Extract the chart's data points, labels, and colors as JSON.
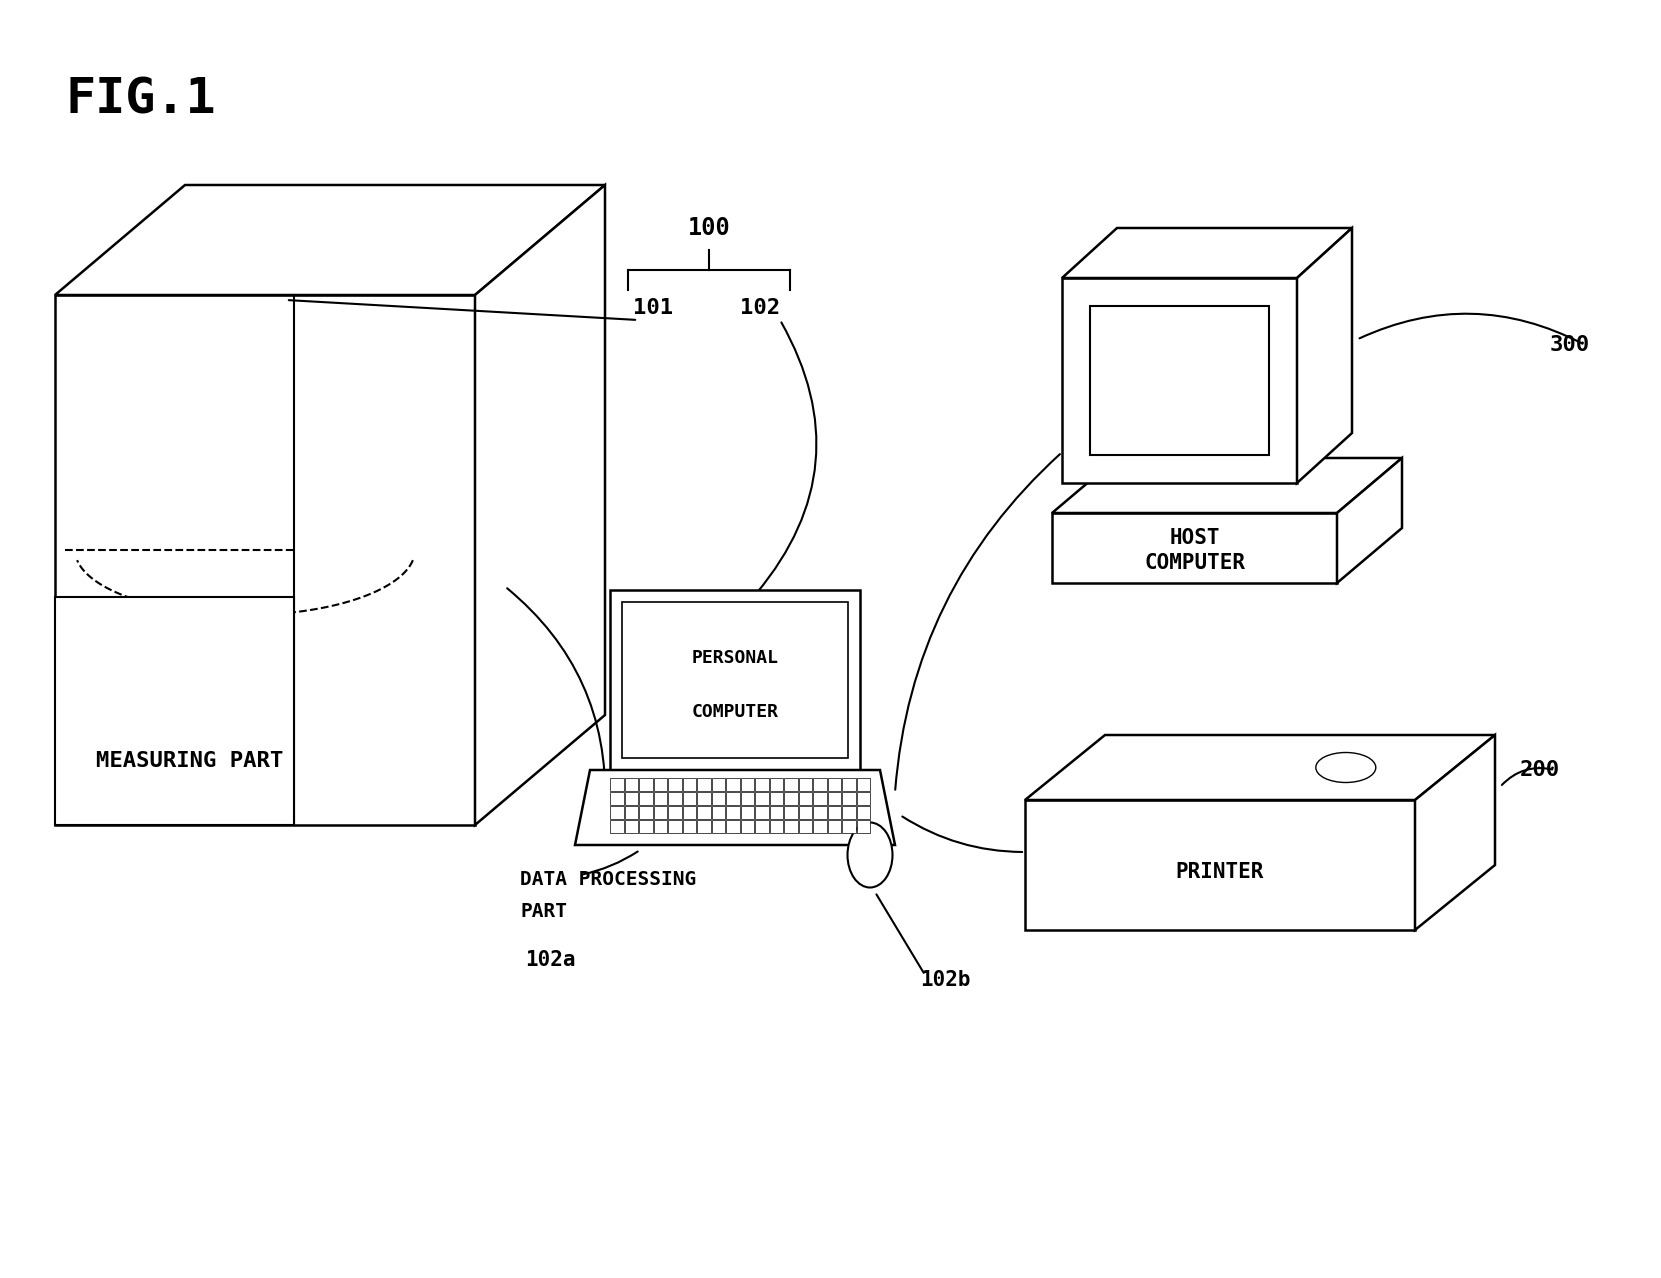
{
  "bg_color": "#ffffff",
  "fig_width": 16.61,
  "fig_height": 12.78,
  "labels": {
    "fig_title": "FIG.1",
    "measuring_part": "MEASURING PART",
    "personal_computer_1": "PERSONAL",
    "personal_computer_2": "COMPUTER",
    "data_processing_1": "DATA PROCESSING",
    "data_processing_2": "PART",
    "host_computer_1": "HOST",
    "host_computer_2": "COMPUTER",
    "printer": "PRINTER",
    "ref_100": "100",
    "ref_101": "101",
    "ref_102": "102",
    "ref_102a": "102a",
    "ref_102b": "102b",
    "ref_200": "200",
    "ref_300": "300"
  },
  "lw": 1.8,
  "lw_thin": 1.5
}
